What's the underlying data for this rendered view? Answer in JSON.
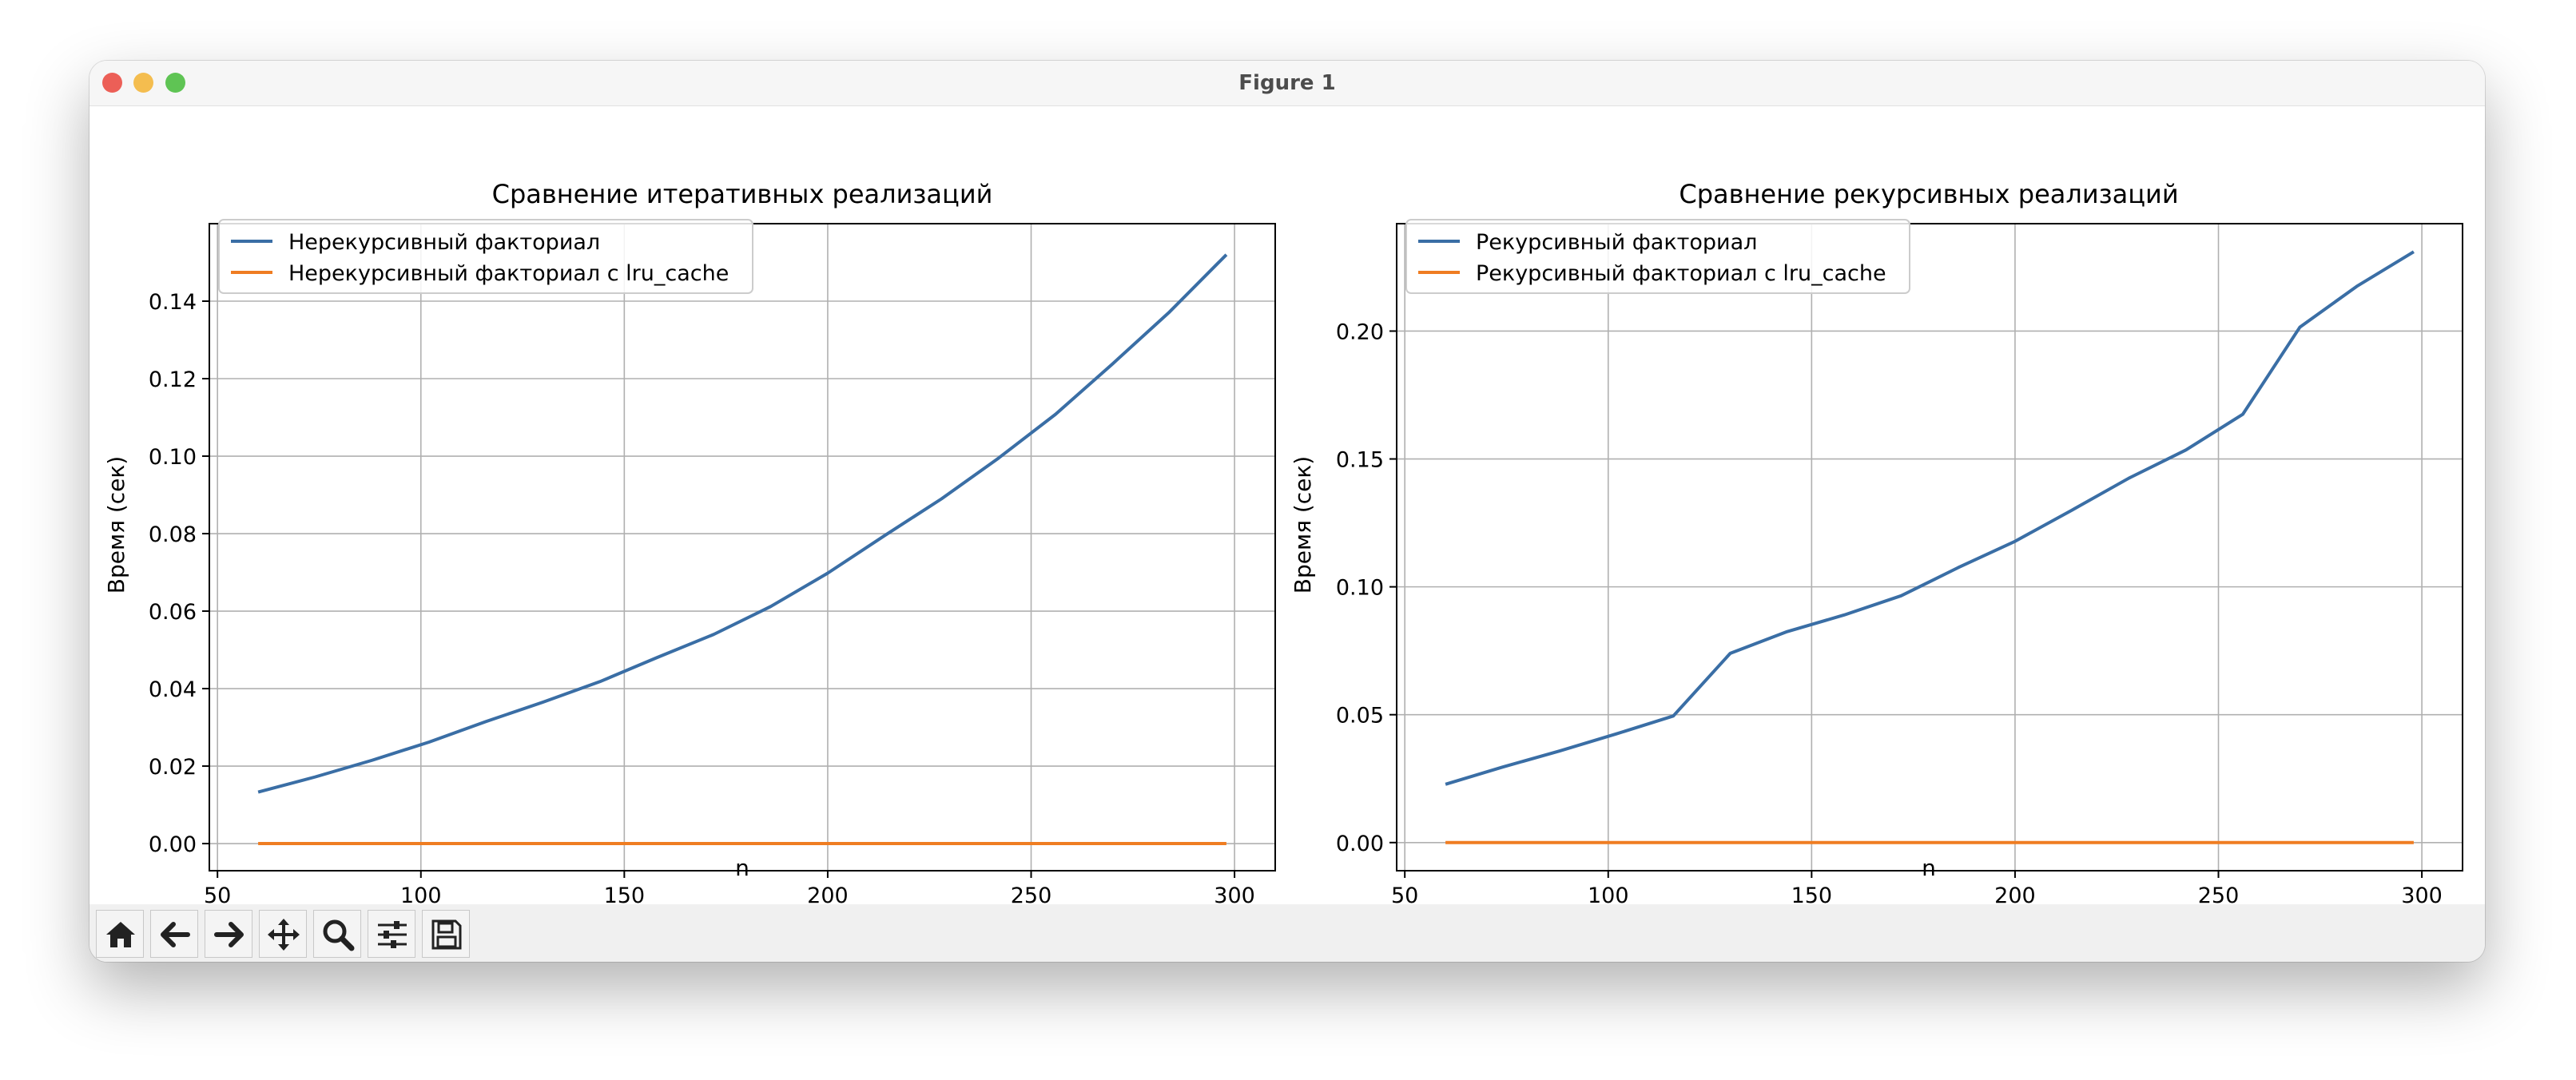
{
  "window": {
    "title": "Figure 1"
  },
  "toolbar": {
    "buttons": [
      {
        "icon": "home-icon"
      },
      {
        "icon": "back-arrow-icon"
      },
      {
        "icon": "forward-arrow-icon"
      },
      {
        "icon": "pan-icon"
      },
      {
        "icon": "zoom-icon"
      },
      {
        "icon": "configure-subplots-icon"
      },
      {
        "icon": "save-icon"
      }
    ]
  },
  "colors": {
    "series_blue": "#3a6ea5",
    "series_orange": "#ef7d22",
    "grid": "#b0b0b0"
  },
  "chart_data": [
    {
      "type": "line",
      "title": "Сравнение итеративных реализаций",
      "xlabel": "n",
      "ylabel": "Время (сек)",
      "xlim": [
        48,
        310
      ],
      "ylim": [
        -0.007,
        0.16
      ],
      "xticks": [
        50,
        100,
        150,
        200,
        250,
        300
      ],
      "xtick_labels": [
        "50",
        "100",
        "150",
        "200",
        "250",
        "300"
      ],
      "yticks": [
        0,
        0.02,
        0.04,
        0.06,
        0.08,
        0.1,
        0.12,
        0.14
      ],
      "ytick_labels": [
        "0.00",
        "0.02",
        "0.04",
        "0.06",
        "0.08",
        "0.10",
        "0.12",
        "0.14"
      ],
      "grid": true,
      "legend": "upper left",
      "series": [
        {
          "name": "Нерекурсивный факториал",
          "color": "#3a6ea5",
          "x": [
            60,
            74,
            88,
            102,
            116,
            130,
            144,
            158,
            172,
            186,
            200,
            214,
            228,
            242,
            256,
            270,
            284,
            298
          ],
          "y": [
            0.0133,
            0.0172,
            0.0215,
            0.0262,
            0.0315,
            0.0365,
            0.0418,
            0.048,
            0.054,
            0.0612,
            0.0698,
            0.0795,
            0.089,
            0.0995,
            0.1108,
            0.1238,
            0.1372,
            0.152
          ]
        },
        {
          "name": "Нерекурсивный факториал с lru_cache",
          "color": "#ef7d22",
          "x": [
            60,
            74,
            88,
            102,
            116,
            130,
            144,
            158,
            172,
            186,
            200,
            214,
            228,
            242,
            256,
            270,
            284,
            298
          ],
          "y": [
            0,
            0,
            0,
            0,
            0,
            0,
            0,
            0,
            0,
            0,
            0,
            0,
            0,
            0,
            0,
            0,
            0,
            0
          ]
        }
      ]
    },
    {
      "type": "line",
      "title": "Сравнение рекурсивных реализаций",
      "xlabel": "n",
      "ylabel": "Время (сек)",
      "xlim": [
        48,
        310
      ],
      "ylim": [
        -0.011,
        0.242
      ],
      "xticks": [
        50,
        100,
        150,
        200,
        250,
        300
      ],
      "xtick_labels": [
        "50",
        "100",
        "150",
        "200",
        "250",
        "300"
      ],
      "yticks": [
        0,
        0.05,
        0.1,
        0.15,
        0.2
      ],
      "ytick_labels": [
        "0.00",
        "0.05",
        "0.10",
        "0.15",
        "0.20"
      ],
      "grid": true,
      "legend": "upper left",
      "series": [
        {
          "name": "Рекурсивный факториал",
          "color": "#3a6ea5",
          "x": [
            60,
            74,
            88,
            102,
            116,
            130,
            144,
            158,
            172,
            186,
            200,
            214,
            228,
            242,
            256,
            270,
            284,
            298
          ],
          "y": [
            0.0228,
            0.0295,
            0.0358,
            0.0425,
            0.0495,
            0.074,
            0.0825,
            0.089,
            0.0965,
            0.1075,
            0.1178,
            0.13,
            0.1425,
            0.1535,
            0.1675,
            0.2015,
            0.2175,
            0.231
          ]
        },
        {
          "name": "Рекурсивный факториал с lru_cache",
          "color": "#ef7d22",
          "x": [
            60,
            74,
            88,
            102,
            116,
            130,
            144,
            158,
            172,
            186,
            200,
            214,
            228,
            242,
            256,
            270,
            284,
            298
          ],
          "y": [
            0,
            0,
            0,
            0,
            0,
            0,
            0,
            0,
            0,
            0,
            0,
            0,
            0,
            0,
            0,
            0,
            0,
            0
          ]
        }
      ]
    }
  ]
}
